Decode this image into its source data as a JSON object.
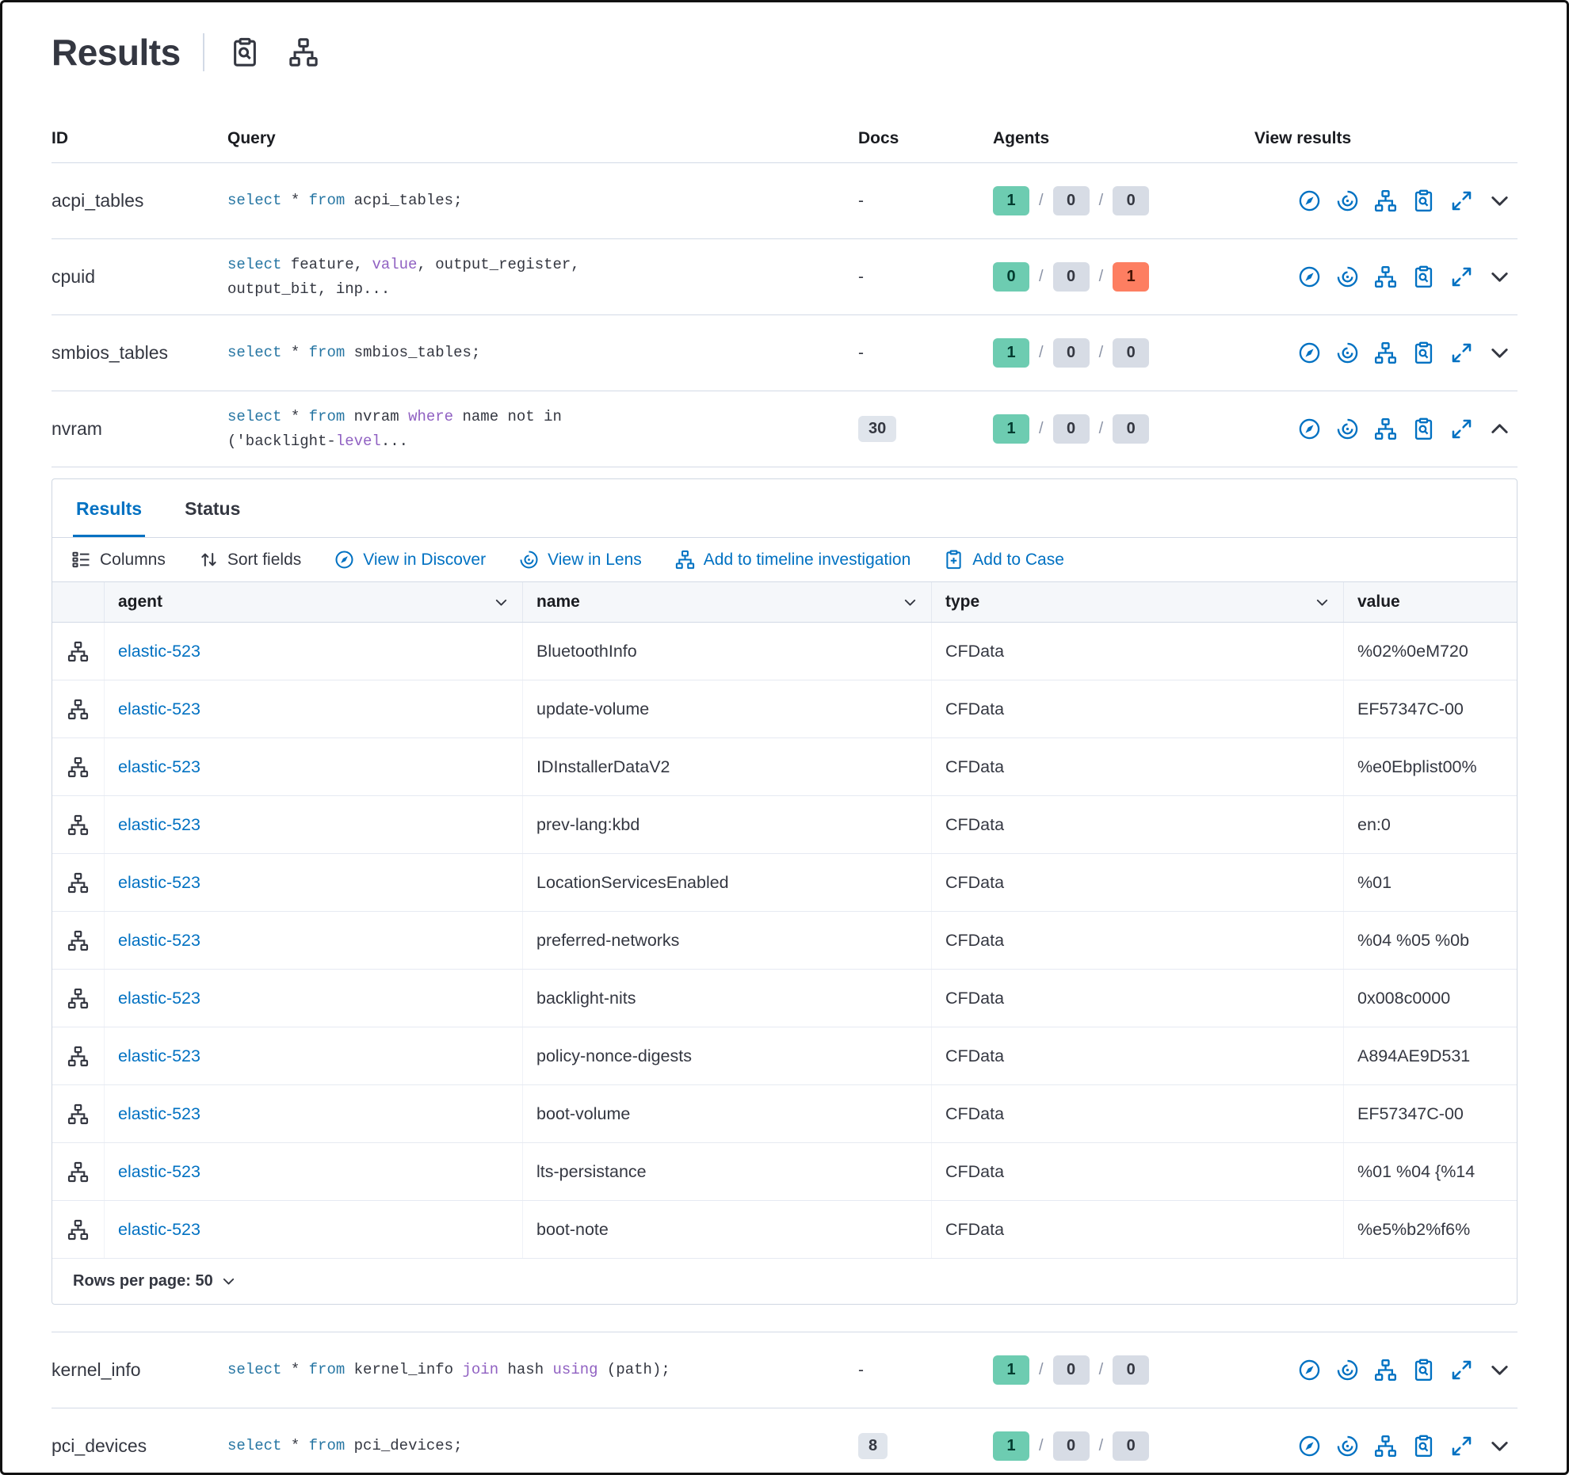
{
  "page": {
    "title": "Results"
  },
  "main_table": {
    "columns": [
      "ID",
      "Query",
      "Docs",
      "Agents",
      "View results"
    ],
    "agents_separator": "/",
    "rows_top": [
      {
        "id": "acpi_tables",
        "docs": "-",
        "docs_badge": false,
        "expanded": false,
        "query": [
          [
            "select",
            "kw"
          ],
          [
            " * ",
            "p"
          ],
          [
            "from",
            "kw"
          ],
          [
            " acpi_tables;",
            "p"
          ]
        ],
        "agents": [
          {
            "v": "1",
            "c": "success"
          },
          {
            "v": "0",
            "c": "default"
          },
          {
            "v": "0",
            "c": "default"
          }
        ]
      },
      {
        "id": "cpuid",
        "docs": "-",
        "docs_badge": false,
        "expanded": false,
        "query": [
          [
            "select",
            "kw"
          ],
          [
            " feature, ",
            "p"
          ],
          [
            "value",
            "kw2"
          ],
          [
            ", output_register,",
            "p"
          ],
          [
            "",
            "br"
          ],
          [
            "output_bit, inp...",
            "p"
          ]
        ],
        "agents": [
          {
            "v": "0",
            "c": "success"
          },
          {
            "v": "0",
            "c": "default"
          },
          {
            "v": "1",
            "c": "danger"
          }
        ]
      },
      {
        "id": "smbios_tables",
        "docs": "-",
        "docs_badge": false,
        "expanded": false,
        "query": [
          [
            "select",
            "kw"
          ],
          [
            " * ",
            "p"
          ],
          [
            "from",
            "kw"
          ],
          [
            " smbios_tables;",
            "p"
          ]
        ],
        "agents": [
          {
            "v": "1",
            "c": "success"
          },
          {
            "v": "0",
            "c": "default"
          },
          {
            "v": "0",
            "c": "default"
          }
        ]
      },
      {
        "id": "nvram",
        "docs": "30",
        "docs_badge": true,
        "expanded": true,
        "query": [
          [
            "select",
            "kw"
          ],
          [
            " * ",
            "p"
          ],
          [
            "from",
            "kw"
          ],
          [
            " nvram ",
            "p"
          ],
          [
            "where",
            "kw2"
          ],
          [
            " name not in",
            "p"
          ],
          [
            "",
            "br"
          ],
          [
            "('backlight-",
            "p"
          ],
          [
            "level",
            "kw2"
          ],
          [
            "...",
            "p"
          ]
        ],
        "agents": [
          {
            "v": "1",
            "c": "success"
          },
          {
            "v": "0",
            "c": "default"
          },
          {
            "v": "0",
            "c": "default"
          }
        ]
      }
    ],
    "rows_bottom": [
      {
        "id": "kernel_info",
        "docs": "-",
        "docs_badge": false,
        "expanded": false,
        "query": [
          [
            "select",
            "kw"
          ],
          [
            " * ",
            "p"
          ],
          [
            "from",
            "kw"
          ],
          [
            " kernel_info ",
            "p"
          ],
          [
            "join",
            "kw2"
          ],
          [
            " hash ",
            "p"
          ],
          [
            "using",
            "kw2"
          ],
          [
            " (path);",
            "p"
          ]
        ],
        "agents": [
          {
            "v": "1",
            "c": "success"
          },
          {
            "v": "0",
            "c": "default"
          },
          {
            "v": "0",
            "c": "default"
          }
        ]
      },
      {
        "id": "pci_devices",
        "docs": "8",
        "docs_badge": true,
        "expanded": false,
        "query": [
          [
            "select",
            "kw"
          ],
          [
            " * ",
            "p"
          ],
          [
            "from",
            "kw"
          ],
          [
            " pci_devices;",
            "p"
          ]
        ],
        "agents": [
          {
            "v": "1",
            "c": "success"
          },
          {
            "v": "0",
            "c": "default"
          },
          {
            "v": "0",
            "c": "default"
          }
        ]
      }
    ]
  },
  "panel": {
    "tabs": [
      {
        "label": "Results",
        "active": true
      },
      {
        "label": "Status",
        "active": false
      }
    ],
    "toolbar": [
      {
        "label": "Columns",
        "icon": "columns-icon",
        "style": "text"
      },
      {
        "label": "Sort fields",
        "icon": "sort-icon",
        "style": "text"
      },
      {
        "label": "View in Discover",
        "icon": "discover-icon",
        "style": "primary"
      },
      {
        "label": "View in Lens",
        "icon": "lens-icon",
        "style": "primary"
      },
      {
        "label": "Add to timeline investigation",
        "icon": "timeline-icon",
        "style": "primary"
      },
      {
        "label": "Add to Case",
        "icon": "case-icon",
        "style": "primary"
      }
    ],
    "grid": {
      "columns": [
        "agent",
        "name",
        "type",
        "value"
      ],
      "rows": [
        {
          "agent": "elastic-523",
          "name": "BluetoothInfo",
          "type": "CFData",
          "value": "%02%0eM720"
        },
        {
          "agent": "elastic-523",
          "name": "update-volume",
          "type": "CFData",
          "value": "EF57347C-00"
        },
        {
          "agent": "elastic-523",
          "name": "IDInstallerDataV2",
          "type": "CFData",
          "value": "%e0Ebplist00%"
        },
        {
          "agent": "elastic-523",
          "name": "prev-lang:kbd",
          "type": "CFData",
          "value": "en:0"
        },
        {
          "agent": "elastic-523",
          "name": "LocationServicesEnabled",
          "type": "CFData",
          "value": "%01"
        },
        {
          "agent": "elastic-523",
          "name": "preferred-networks",
          "type": "CFData",
          "value": "%04 %05 %0b"
        },
        {
          "agent": "elastic-523",
          "name": "backlight-nits",
          "type": "CFData",
          "value": "0x008c0000"
        },
        {
          "agent": "elastic-523",
          "name": "policy-nonce-digests",
          "type": "CFData",
          "value": "A894AE9D531"
        },
        {
          "agent": "elastic-523",
          "name": "boot-volume",
          "type": "CFData",
          "value": "EF57347C-00"
        },
        {
          "agent": "elastic-523",
          "name": "lts-persistance",
          "type": "CFData",
          "value": "%01 %04 {%14"
        },
        {
          "agent": "elastic-523",
          "name": "boot-note",
          "type": "CFData",
          "value": "%e5%b2%f6%"
        }
      ],
      "footer": "Rows per page: 50"
    }
  }
}
